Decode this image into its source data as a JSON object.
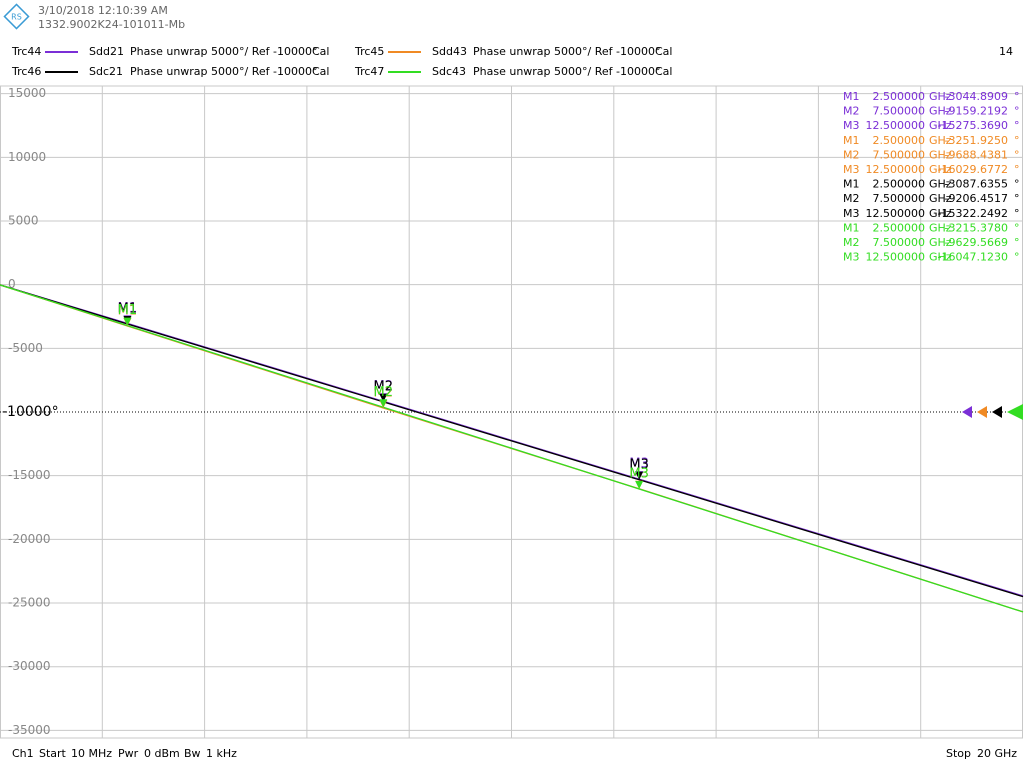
{
  "header": {
    "timestamp": "3/10/2018 12:10:39 AM",
    "device_id": "1332.9002K24-101011-Mb",
    "corner_number": "14"
  },
  "chart_data": {
    "type": "line",
    "x": [
      0.01,
      2.5,
      7.5,
      12.5,
      20
    ],
    "xlim": [
      0.01,
      20
    ],
    "ylim": [
      -35600,
      15600
    ],
    "yticks": [
      15000,
      10000,
      5000,
      0,
      -5000,
      {
        "value": -10000,
        "label": "-10000°"
      },
      -15000,
      -20000,
      -25000,
      -30000,
      -35000
    ],
    "grid": true,
    "series": [
      {
        "trace": "Trc44",
        "name": "Sdd21",
        "format": "Phase unwrap",
        "scale": "5000°/ Ref -10000°",
        "cal": "Cal",
        "color": "#7b2fd6",
        "values": [
          -20,
          -3044.8909,
          -9159.2192,
          -15275.369,
          -24440
        ]
      },
      {
        "trace": "Trc45",
        "name": "Sdd43",
        "format": "Phase unwrap",
        "scale": "5000°/ Ref -10000°",
        "cal": "Cal",
        "color": "#f08a24",
        "values": [
          -20,
          -3251.925,
          -9688.4381,
          -16029.6772,
          -25700
        ]
      },
      {
        "trace": "Trc46",
        "name": "Sdc21",
        "format": "Phase unwrap",
        "scale": "5000°/ Ref -10000°",
        "cal": "Cal",
        "color": "#000000",
        "values": [
          -20,
          -3087.6355,
          -9206.4517,
          -15322.2492,
          -24500
        ]
      },
      {
        "trace": "Trc47",
        "name": "Sdc43",
        "format": "Phase unwrap",
        "scale": "5000°/ Ref -10000°",
        "cal": "Cal",
        "color": "#33dd22",
        "values": [
          -20,
          -3215.378,
          -9629.5669,
          -16047.123,
          -25700
        ]
      }
    ],
    "markers": [
      [
        [
          "M1",
          "2.500000",
          "GHz",
          "-3044.8909",
          "°"
        ],
        [
          "M2",
          "7.500000",
          "GHz",
          "-9159.2192",
          "°"
        ],
        [
          "M3",
          "12.500000",
          "GHz",
          "-15275.3690",
          "°"
        ]
      ],
      [
        [
          "M1",
          "2.500000",
          "GHz",
          "-3251.9250",
          "°"
        ],
        [
          "M2",
          "7.500000",
          "GHz",
          "-9688.4381",
          "°"
        ],
        [
          "M3",
          "12.500000",
          "GHz",
          "-16029.6772",
          "°"
        ]
      ],
      [
        [
          "M1",
          "2.500000",
          "GHz",
          "-3087.6355",
          "°"
        ],
        [
          "M2",
          "7.500000",
          "GHz",
          "-9206.4517",
          "°"
        ],
        [
          "M3",
          "12.500000",
          "GHz",
          "-15322.2492",
          "°"
        ]
      ],
      [
        [
          "M1",
          "2.500000",
          "GHz",
          "-3215.3780",
          "°"
        ],
        [
          "M2",
          "7.500000",
          "GHz",
          "-9629.5669",
          "°"
        ],
        [
          "M3",
          "12.500000",
          "GHz",
          "-16047.1230",
          "°"
        ]
      ]
    ]
  },
  "footer": {
    "channel": "Ch1",
    "start_label": "Start",
    "start_value": "10 MHz",
    "power_label": "Pwr",
    "power_value": "0 dBm",
    "bw_label": "Bw",
    "bw_value": "1 kHz",
    "stop_label": "Stop",
    "stop_value": "20 GHz"
  }
}
